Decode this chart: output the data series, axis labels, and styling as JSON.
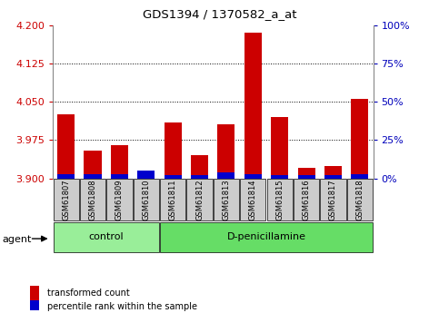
{
  "title": "GDS1394 / 1370582_a_at",
  "samples": [
    "GSM61807",
    "GSM61808",
    "GSM61809",
    "GSM61810",
    "GSM61811",
    "GSM61812",
    "GSM61813",
    "GSM61814",
    "GSM61815",
    "GSM61816",
    "GSM61817",
    "GSM61818"
  ],
  "red_values": [
    4.025,
    3.955,
    3.965,
    3.9,
    4.01,
    3.945,
    4.005,
    4.185,
    4.02,
    3.92,
    3.925,
    4.055
  ],
  "blue_values": [
    3,
    3,
    3,
    5,
    2,
    2,
    4,
    3,
    2,
    2,
    2,
    3
  ],
  "baseline": 3.9,
  "ylim_left": [
    3.9,
    4.2
  ],
  "ylim_right": [
    0,
    100
  ],
  "yticks_left": [
    3.9,
    3.975,
    4.05,
    4.125,
    4.2
  ],
  "yticks_right": [
    0,
    25,
    50,
    75,
    100
  ],
  "ytick_labels_right": [
    "0%",
    "25%",
    "50%",
    "75%",
    "100%"
  ],
  "hlines": [
    4.125,
    4.05,
    3.975
  ],
  "groups": [
    {
      "label": "control",
      "start": 0,
      "end": 3,
      "color": "#99ee99"
    },
    {
      "label": "D-penicillamine",
      "start": 4,
      "end": 11,
      "color": "#66dd66"
    }
  ],
  "group_row_label": "agent",
  "legend_items": [
    {
      "color": "#cc0000",
      "label": "transformed count"
    },
    {
      "color": "#0000cc",
      "label": "percentile rank within the sample"
    }
  ],
  "bar_width": 0.65,
  "red_color": "#cc0000",
  "blue_color": "#0000cc",
  "grid_color": "#000000",
  "tick_label_color_left": "#cc0000",
  "tick_label_color_right": "#0000bb",
  "title_color": "#000000",
  "sample_bg": "#cccccc",
  "figure_width": 4.83,
  "figure_height": 3.45,
  "figure_dpi": 100
}
